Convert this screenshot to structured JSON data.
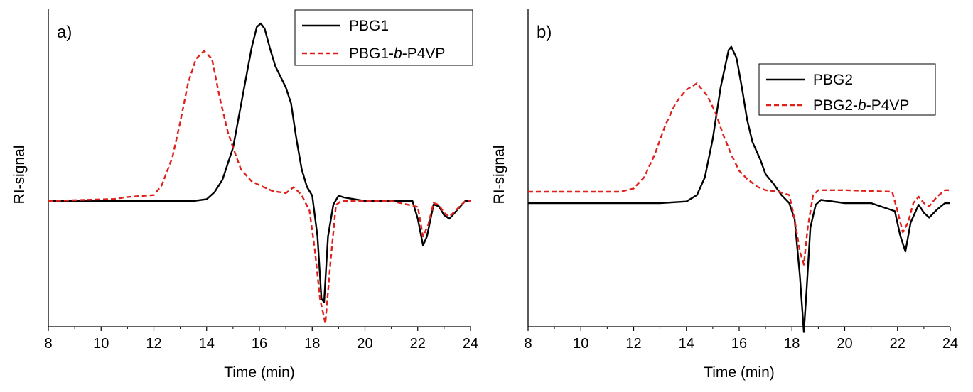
{
  "chart_data": [
    {
      "type": "line",
      "panel_label": "a)",
      "xlabel": "Time (min)",
      "ylabel": "RI-signal",
      "xlim": [
        8,
        24
      ],
      "ylim": [
        -1.0,
        1.0
      ],
      "xticks": [
        8,
        10,
        12,
        14,
        16,
        18,
        20,
        22,
        24
      ],
      "grid": false,
      "legend_position": "top-right",
      "series": [
        {
          "name": "PBG1",
          "italic_part": "",
          "color": "#000000",
          "style": "solid",
          "x": [
            8,
            12,
            13.5,
            14,
            14.3,
            14.6,
            15.0,
            15.4,
            15.7,
            15.9,
            16.05,
            16.2,
            16.4,
            16.6,
            16.8,
            17.0,
            17.2,
            17.4,
            17.6,
            17.8,
            18.0,
            18.2,
            18.35,
            18.45,
            18.6,
            18.8,
            19.0,
            19.2,
            20,
            21,
            21.8,
            22.0,
            22.2,
            22.35,
            22.6,
            22.8,
            23.0,
            23.2,
            23.5,
            23.8,
            24
          ],
          "y": [
            0.0,
            0.0,
            0.0,
            0.01,
            0.05,
            0.12,
            0.3,
            0.62,
            0.86,
            0.98,
            1.0,
            0.97,
            0.86,
            0.76,
            0.7,
            0.64,
            0.55,
            0.35,
            0.18,
            0.08,
            0.03,
            -0.2,
            -0.55,
            -0.57,
            -0.2,
            -0.02,
            0.03,
            0.02,
            0.0,
            0.0,
            0.0,
            -0.1,
            -0.25,
            -0.2,
            -0.02,
            -0.03,
            -0.08,
            -0.1,
            -0.05,
            0.0,
            0.0
          ]
        },
        {
          "name": "PBG1-",
          "italic_part": "b",
          "name_suffix": "-P4VP",
          "color": "#e0201b",
          "style": "dashed",
          "x": [
            8,
            10.5,
            11.0,
            12.0,
            12.3,
            12.7,
            13.0,
            13.3,
            13.6,
            13.9,
            14.2,
            14.5,
            14.8,
            15.0,
            15.3,
            15.7,
            16.0,
            16.5,
            17.0,
            17.3,
            17.6,
            17.9,
            18.1,
            18.3,
            18.5,
            18.7,
            18.9,
            19.1,
            20,
            21,
            22.0,
            22.2,
            22.4,
            22.6,
            22.8,
            23.0,
            23.2,
            23.5,
            23.8,
            24
          ],
          "y": [
            0.0,
            0.01,
            0.02,
            0.03,
            0.08,
            0.22,
            0.4,
            0.6,
            0.72,
            0.76,
            0.72,
            0.52,
            0.35,
            0.27,
            0.16,
            0.1,
            0.08,
            0.05,
            0.04,
            0.07,
            0.03,
            -0.05,
            -0.25,
            -0.5,
            -0.62,
            -0.3,
            -0.02,
            0.0,
            0.0,
            0.0,
            -0.03,
            -0.18,
            -0.12,
            -0.01,
            -0.02,
            -0.06,
            -0.08,
            -0.04,
            0.0,
            0.0
          ]
        }
      ]
    },
    {
      "type": "line",
      "panel_label": "b)",
      "xlabel": "Time (min)",
      "ylabel": "RI-signal",
      "xlim": [
        8,
        24
      ],
      "ylim": [
        -1.0,
        1.0
      ],
      "xticks": [
        8,
        10,
        12,
        14,
        16,
        18,
        20,
        22,
        24
      ],
      "grid": false,
      "legend_position": "top-right",
      "series": [
        {
          "name": "PBG2",
          "italic_part": "",
          "color": "#000000",
          "style": "solid",
          "x": [
            8,
            13,
            14.0,
            14.4,
            14.7,
            15.0,
            15.3,
            15.6,
            15.7,
            15.9,
            16.1,
            16.3,
            16.5,
            16.8,
            17.0,
            17.3,
            17.6,
            17.9,
            18.1,
            18.3,
            18.45,
            18.55,
            18.7,
            18.9,
            19.1,
            20,
            21,
            21.9,
            22.1,
            22.3,
            22.5,
            22.8,
            23.0,
            23.2,
            23.5,
            23.8,
            24
          ],
          "y": [
            0.0,
            0.0,
            0.01,
            0.05,
            0.16,
            0.4,
            0.72,
            0.95,
            0.97,
            0.9,
            0.72,
            0.52,
            0.38,
            0.27,
            0.18,
            0.12,
            0.05,
            0.0,
            -0.1,
            -0.45,
            -0.8,
            -0.55,
            -0.15,
            -0.01,
            0.02,
            0.0,
            0.0,
            -0.05,
            -0.2,
            -0.3,
            -0.12,
            -0.01,
            -0.06,
            -0.09,
            -0.04,
            0.0,
            0.0
          ]
        },
        {
          "name": "PBG2-",
          "italic_part": "b",
          "name_suffix": "-P4VP",
          "color": "#e0201b",
          "style": "dashed",
          "x": [
            8,
            11.5,
            12.0,
            12.4,
            12.8,
            13.2,
            13.6,
            14.0,
            14.4,
            14.8,
            15.1,
            15.4,
            15.7,
            16.0,
            16.3,
            16.7,
            17.0,
            17.5,
            17.9,
            18.1,
            18.3,
            18.45,
            18.6,
            18.8,
            19.0,
            20,
            21.8,
            22.0,
            22.2,
            22.4,
            22.6,
            22.8,
            23.0,
            23.2,
            23.5,
            23.8,
            24
          ],
          "y": [
            0.07,
            0.07,
            0.09,
            0.16,
            0.3,
            0.48,
            0.62,
            0.7,
            0.74,
            0.66,
            0.56,
            0.42,
            0.3,
            0.2,
            0.15,
            0.1,
            0.08,
            0.07,
            0.05,
            -0.1,
            -0.3,
            -0.38,
            -0.15,
            0.05,
            0.08,
            0.08,
            0.07,
            -0.05,
            -0.18,
            -0.12,
            0.0,
            0.04,
            0.0,
            -0.02,
            0.04,
            0.08,
            0.08
          ]
        }
      ]
    }
  ]
}
